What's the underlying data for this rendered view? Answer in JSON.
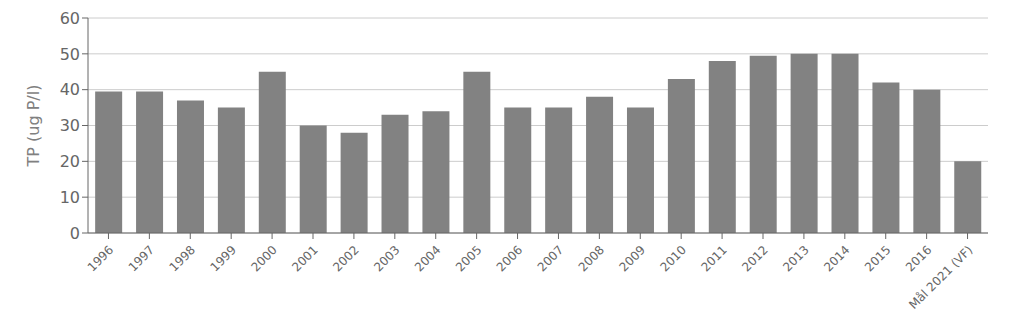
{
  "chart_data": {
    "type": "bar",
    "categories": [
      "1996",
      "1997",
      "1998",
      "1999",
      "2000",
      "2001",
      "2002",
      "2003",
      "2004",
      "2005",
      "2006",
      "2007",
      "2008",
      "2009",
      "2010",
      "2011",
      "2012",
      "2013",
      "2014",
      "2015",
      "2016",
      "Mål 2021 (VF)"
    ],
    "values": [
      39.5,
      39.5,
      37,
      35,
      45,
      30,
      28,
      33,
      34,
      45,
      35,
      35,
      38,
      35,
      43,
      48,
      49.5,
      50,
      50,
      42,
      40,
      20
    ],
    "color": "#828282",
    "ylabel": "TP (ug P/l)",
    "ylim": [
      0,
      60
    ],
    "yticks": [
      0,
      10,
      20,
      30,
      40,
      50,
      60
    ],
    "grid": true
  }
}
